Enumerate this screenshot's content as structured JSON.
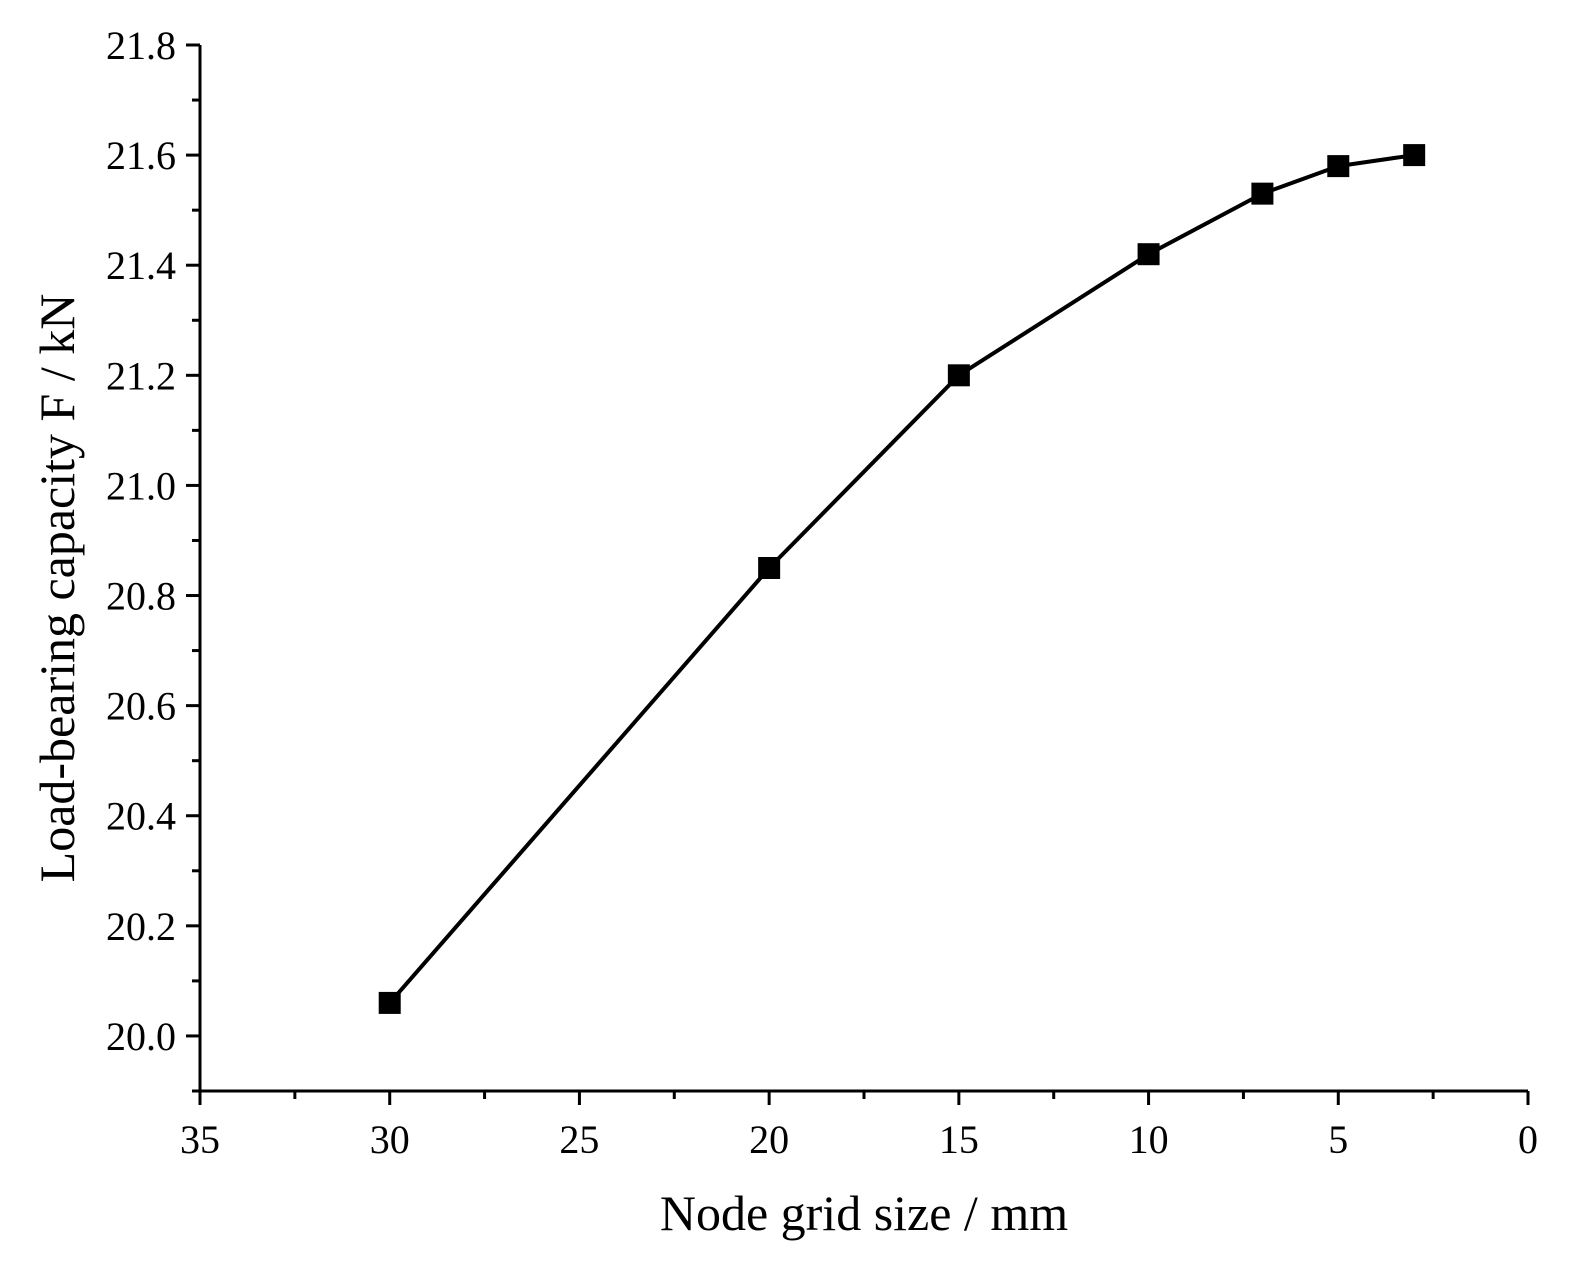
{
  "chart_data": {
    "type": "line",
    "xlabel": "Node grid size / mm",
    "ylabel": "Load-bearing capacity F / kN",
    "xlim": [
      35,
      0
    ],
    "x_reversed": true,
    "ylim": [
      19.9,
      21.8
    ],
    "x_ticks": [
      35,
      30,
      25,
      20,
      15,
      10,
      5,
      0
    ],
    "x_tick_labels": [
      "35",
      "30",
      "25",
      "20",
      "15",
      "10",
      "5",
      "0"
    ],
    "y_ticks": [
      20.0,
      20.2,
      20.4,
      20.6,
      20.8,
      21.0,
      21.2,
      21.4,
      21.6,
      21.8
    ],
    "y_tick_labels": [
      "20.0",
      "20.2",
      "20.4",
      "20.6",
      "20.8",
      "21.0",
      "21.2",
      "21.4",
      "21.6",
      "21.8"
    ],
    "grid": false,
    "marker": "square",
    "series": [
      {
        "x": [
          30,
          20,
          15,
          10,
          7,
          5,
          3
        ],
        "y": [
          20.06,
          20.85,
          21.2,
          21.42,
          21.53,
          21.58,
          21.6
        ]
      }
    ],
    "colors": {
      "line": "#000000",
      "marker": "#000000"
    }
  }
}
